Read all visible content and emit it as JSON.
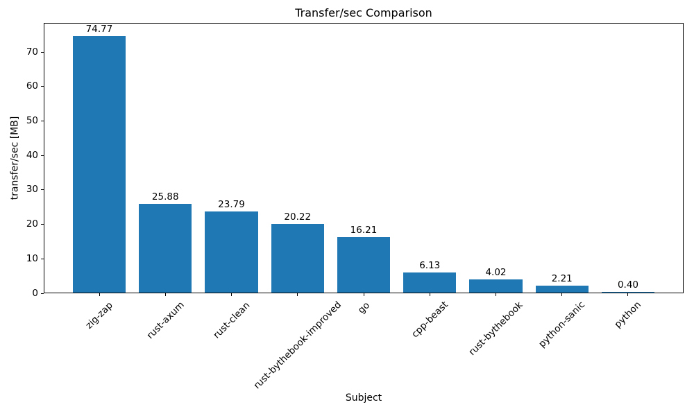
{
  "chart_data": {
    "type": "bar",
    "title": "Transfer/sec Comparison",
    "xlabel": "Subject",
    "ylabel": "transfer/sec [MB]",
    "categories": [
      "zig-zap",
      "rust-axum",
      "rust-clean",
      "rust-bythebook-improved",
      "go",
      "cpp-beast",
      "rust-bythebook",
      "python-sanic",
      "python"
    ],
    "values": [
      74.77,
      25.88,
      23.79,
      20.22,
      16.21,
      6.13,
      4.02,
      2.21,
      0.4
    ],
    "value_labels": [
      "74.77",
      "25.88",
      "23.79",
      "20.22",
      "16.21",
      "6.13",
      "4.02",
      "2.21",
      "0.40"
    ],
    "yticks": [
      0,
      10,
      20,
      30,
      40,
      50,
      60,
      70
    ],
    "ytick_labels": [
      "0",
      "10",
      "20",
      "30",
      "40",
      "50",
      "60",
      "70"
    ],
    "ylim": [
      0,
      78.5
    ],
    "bar_color": "#1f77b4",
    "axis_color": "#000000",
    "background_color": "#ffffff",
    "grid": false,
    "legend": null,
    "bar_width_fraction": 0.8,
    "xtick_rotation_deg": 45
  }
}
